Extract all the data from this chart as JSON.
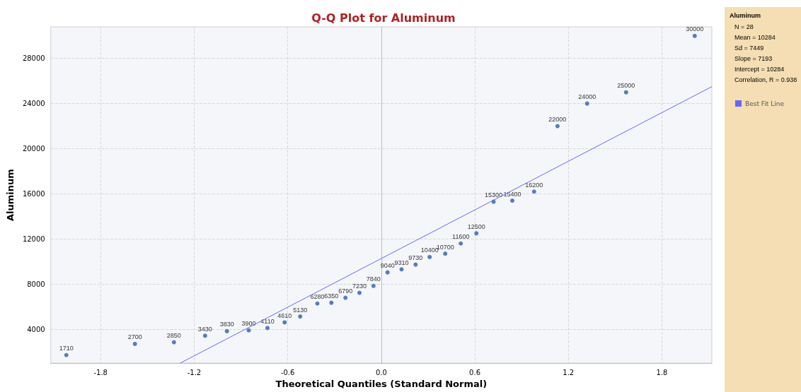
{
  "chart_data": {
    "type": "scatter",
    "title": "Q-Q Plot for Aluminum",
    "xlabel": "Theoretical Quantiles (Standard Normal)",
    "ylabel": "Aluminum",
    "legend_title": "Aluminum",
    "annotations": [
      "N = 28",
      "Mean = 10284",
      "Sd = 7449",
      "Slope = 7193",
      "Intercept = 10284",
      "Correlation, R = 0.938"
    ],
    "series": [
      {
        "color": "#2b5fb4",
        "marker": "circle",
        "x": [
          -2.02,
          -1.58,
          -1.33,
          -1.13,
          -0.99,
          -0.85,
          -0.73,
          -0.62,
          -0.52,
          -0.41,
          -0.32,
          -0.23,
          -0.14,
          -0.05,
          0.04,
          0.13,
          0.22,
          0.31,
          0.41,
          0.51,
          0.61,
          0.72,
          0.84,
          0.98,
          1.13,
          1.32,
          1.57,
          2.01
        ],
        "values": [
          1710,
          2700,
          2850,
          3430,
          3830,
          3900,
          4110,
          4610,
          5130,
          6280,
          6350,
          6790,
          7230,
          7840,
          9040,
          9310,
          9730,
          10400,
          10700,
          11600,
          12500,
          15300,
          15400,
          16200,
          22000,
          24000,
          25000,
          30000
        ],
        "value_labels": [
          "1710",
          "2700",
          "2850",
          "3430",
          "3830",
          "3900",
          "4110",
          "4610",
          "5130",
          "6280",
          "6350",
          "6790",
          "7230",
          "7840",
          "9040",
          "9310",
          "9730",
          "10400",
          "10700",
          "11600",
          "12500",
          "15300",
          "15400",
          "16200",
          "22000",
          "24000",
          "25000",
          "30000"
        ]
      },
      {
        "type": "line",
        "name": "Best Fit Line",
        "color": "#6666ff",
        "marker": "none",
        "x": [
          -1.29,
          2.12
        ],
        "values": [
          1000,
          25500
        ]
      }
    ],
    "xlim": [
      -2.12,
      2.12
    ],
    "xticks": [
      -1.8,
      -1.2,
      -0.6,
      {
        "value": 0,
        "label": "0.0"
      },
      0.6,
      1.2,
      1.8
    ],
    "ylim": [
      1000,
      30800
    ],
    "yticks": [
      4000,
      8000,
      12000,
      16000,
      20000,
      24000,
      28000
    ],
    "grid": true,
    "legend": "right"
  }
}
